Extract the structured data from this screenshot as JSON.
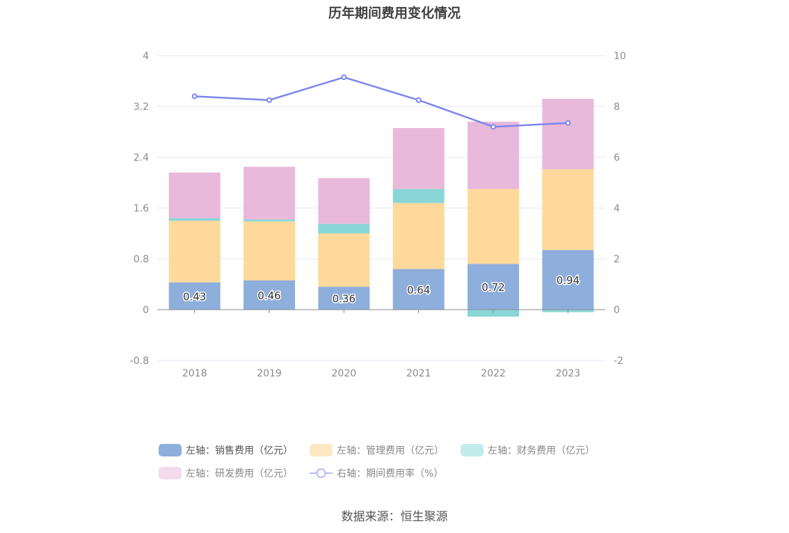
{
  "title": "历年期间费用变化情况",
  "source": "数据来源：恒生聚源",
  "chart_data": {
    "type": "bar",
    "stacked": true,
    "categories": [
      "2018",
      "2019",
      "2020",
      "2021",
      "2022",
      "2023"
    ],
    "left_axis": {
      "ticks": [
        "4",
        "3.2",
        "2.4",
        "1.6",
        "0.8",
        "0",
        "-0.8"
      ],
      "ylim": [
        -0.8,
        4
      ]
    },
    "right_axis": {
      "ticks": [
        "10",
        "8",
        "6",
        "4",
        "2",
        "0",
        "-2"
      ],
      "ylim": [
        -2,
        10
      ]
    },
    "grid": true,
    "legend_placement": "bottom",
    "series": [
      {
        "name": "左轴：销售费用（亿元）",
        "axis": "left",
        "color": "#8eaedc",
        "values": [
          0.43,
          0.46,
          0.36,
          0.64,
          0.72,
          0.94
        ],
        "labels": [
          "0.43",
          "0.46",
          "0.36",
          "0.64",
          "0.72",
          "0.94"
        ]
      },
      {
        "name": "左轴：管理费用（亿元）",
        "axis": "left",
        "color": "#fed99b",
        "values": [
          0.97,
          0.93,
          0.84,
          1.04,
          1.18,
          1.27
        ]
      },
      {
        "name": "左轴：财务费用（亿元）",
        "axis": "left",
        "color": "#89d6d8",
        "values": [
          0.04,
          0.03,
          0.15,
          0.22,
          -0.11,
          -0.04
        ]
      },
      {
        "name": "左轴：研发费用（亿元）",
        "axis": "left",
        "color": "#e8b9da",
        "values": [
          0.72,
          0.83,
          0.72,
          0.96,
          1.06,
          1.11
        ]
      },
      {
        "name": "右轴：期间费用率（%）",
        "axis": "right",
        "type": "line",
        "color": "#7d85ec",
        "values": [
          8.4,
          8.25,
          9.15,
          8.25,
          7.2,
          7.35
        ]
      }
    ]
  }
}
